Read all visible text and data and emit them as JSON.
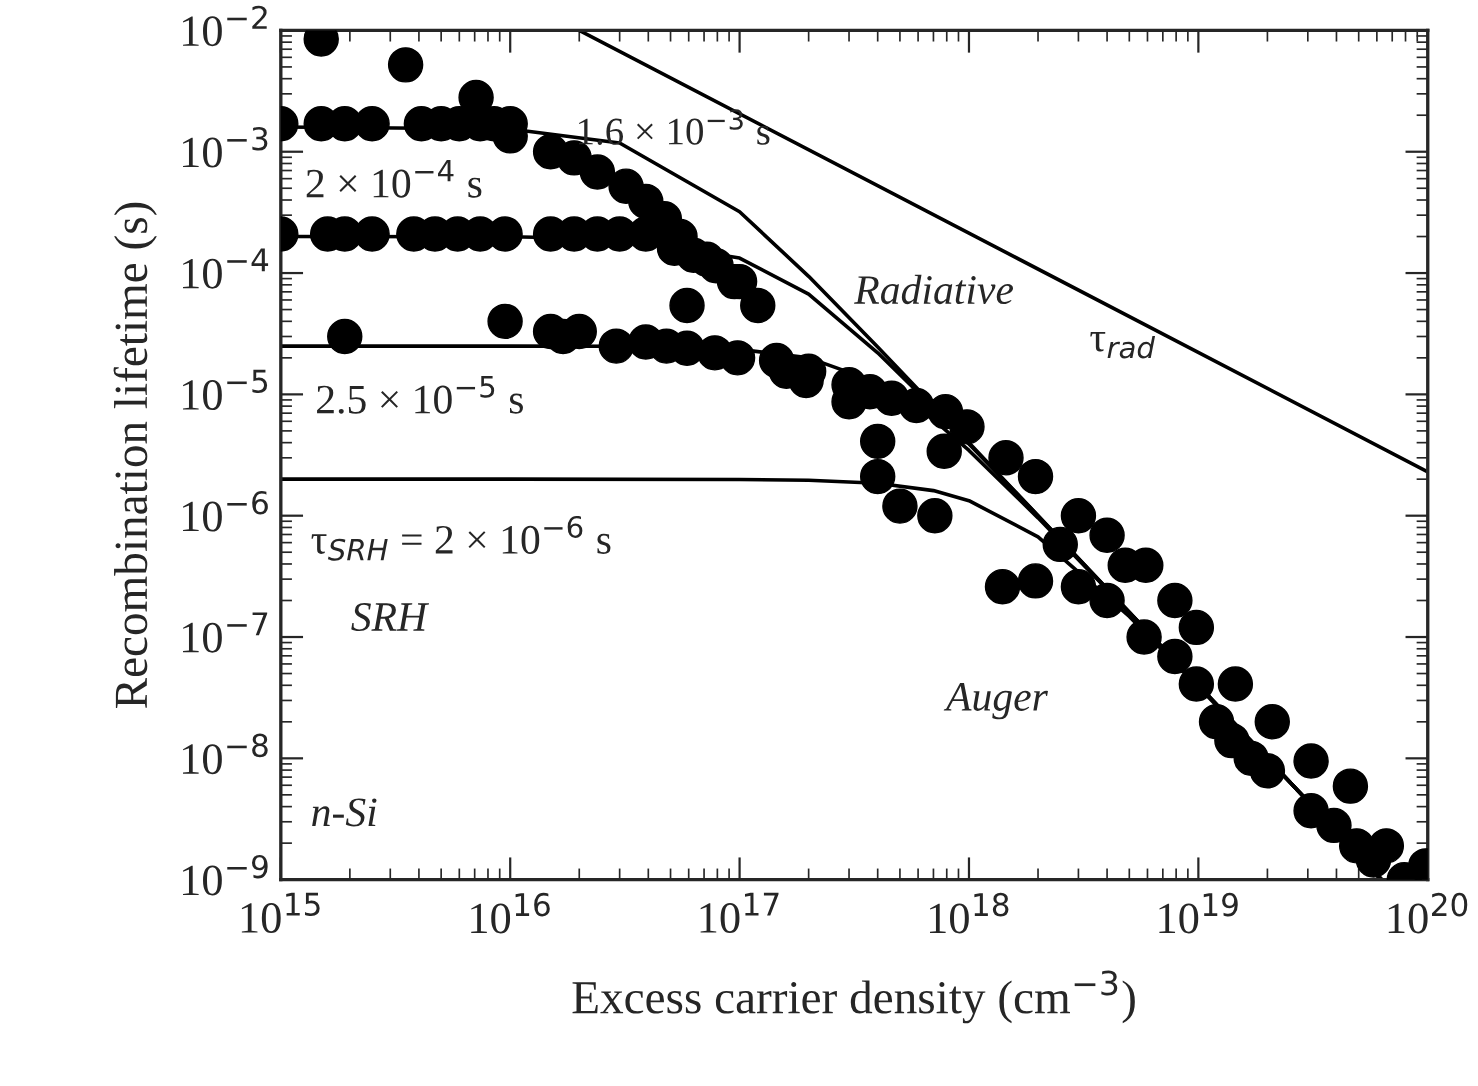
{
  "chart_data": {
    "type": "line",
    "xlabel": "Excess carrier density (cm$^{−3}$)",
    "ylabel": "Recombination lifetime (s)",
    "log": "xy",
    "grid": false,
    "legend": false,
    "marker": "none",
    "line_style": "solid",
    "xlim": [
      1000000000000000.0,
      1e+20
    ],
    "ylim": [
      1e-09,
      0.01
    ],
    "xticks": [
      {
        "value": 1000000000000000.0,
        "label": "10$^{15}$"
      },
      {
        "value": 1e+16,
        "label": "10$^{16}$"
      },
      {
        "value": 1e+17,
        "label": "10$^{17}$"
      },
      {
        "value": 1e+18,
        "label": "10$^{18}$"
      },
      {
        "value": 1e+19,
        "label": "10$^{19}$"
      },
      {
        "value": 1e+20,
        "label": "10$^{20}$"
      }
    ],
    "yticks": [
      {
        "value": 1e-09,
        "label": "10$^{−9}$"
      },
      {
        "value": 1e-08,
        "label": "10$^{−8}$"
      },
      {
        "value": 1e-07,
        "label": "10$^{−7}$"
      },
      {
        "value": 1e-06,
        "label": "10$^{−6}$"
      },
      {
        "value": 1e-05,
        "label": "10$^{−5}$"
      },
      {
        "value": 0.0001,
        "label": "10$^{−4}$"
      },
      {
        "value": 0.001,
        "label": "10$^{−3}$"
      },
      {
        "value": 0.01,
        "label": "10$^{−2}$"
      }
    ],
    "series": [
      {
        "color": "#000000",
        "x": [
          2e+16,
          1e+20
        ],
        "values": [
          0.01,
          2.3e-06
        ]
      },
      {
        "color": "#000000",
        "x": [
          1000000000000000.0,
          1e+16,
          3e+16,
          1e+17,
          2e+17,
          4e+17,
          7e+17,
          1e+18,
          2e+18,
          5e+18,
          1e+19,
          2e+19,
          5e+19,
          6.3e+19
        ],
        "values": [
          0.0016,
          0.00154,
          0.00118,
          0.00032,
          9.4e-05,
          2.46e-05,
          8.1e-06,
          4e-06,
          1e-06,
          1.6e-07,
          4e-08,
          1e-08,
          1.6e-09,
          1e-09
        ]
      },
      {
        "color": "#000000",
        "x": [
          1000000000000000.0,
          1e+16,
          3e+16,
          1e+17,
          2e+17,
          4e+17,
          7e+17,
          1e+18,
          2e+18,
          5e+18,
          1e+19,
          2e+19,
          5e+19,
          6.3e+19
        ],
        "values": [
          0.0002,
          0.000199,
          0.000191,
          0.000133,
          6.7e-05,
          2.2e-05,
          7.8e-06,
          3.9e-06,
          1e-06,
          1.6e-07,
          4e-08,
          1e-08,
          1.6e-09,
          1e-09
        ]
      },
      {
        "color": "#000000",
        "x": [
          1000000000000000.0,
          1e+16,
          3e+16,
          1e+17,
          2e+17,
          4e+17,
          7e+17,
          1e+18,
          2e+18,
          5e+18,
          1e+19,
          2e+19,
          5e+19,
          6.3e+19
        ],
        "values": [
          2.5e-05,
          2.5e-05,
          2.49e-05,
          2.35e-05,
          2e-05,
          1.25e-05,
          6.2e-06,
          3.45e-06,
          9.6e-07,
          1.59e-07,
          4e-08,
          1e-08,
          1.6e-09,
          1e-09
        ]
      },
      {
        "color": "#000000",
        "x": [
          1000000000000000.0,
          1e+16,
          1e+17,
          2e+17,
          4e+17,
          7e+17,
          1e+18,
          2e+18,
          5e+18,
          1e+19,
          2e+19,
          5e+19,
          6.3e+19
        ],
        "values": [
          2e-06,
          2e-06,
          1.99e-06,
          1.96e-06,
          1.85e-06,
          1.61e-06,
          1.33e-06,
          6.7e-07,
          1.48e-07,
          3.9e-08,
          1e-08,
          1.6e-09,
          1e-09
        ]
      },
      {
        "type": "scatter",
        "color": "#000000",
        "marker": "circle",
        "x": [
          1500000000000000.0,
          3500000000000000.0,
          7100000000000000.0,
          1000000000000000.0,
          1500000000000000.0,
          1900000000000000.0,
          2500000000000000.0,
          4100000000000000.0,
          5000000000000000.0,
          6000000000000000.0,
          7400000000000000.0,
          8500000000000000.0,
          1e+16,
          1e+16,
          1.5e+16,
          1.9e+16,
          2.4e+16,
          3.2e+16,
          3.9e+16,
          4.7e+16,
          5.5e+16,
          7.2e+16,
          9.5e+16,
          1.2e+17,
          5.9e+16,
          1000000000000000.0,
          1600000000000000.0,
          1900000000000000.0,
          2500000000000000.0,
          3800000000000000.0,
          4700000000000000.0,
          5900000000000000.0,
          7400000000000000.0,
          9500000000000000.0,
          1.5e+16,
          1.9e+16,
          2.4e+16,
          3e+16,
          3.9e+16,
          5.2e+16,
          6.3e+16,
          7.9e+16,
          1e+17,
          1900000000000000.0,
          9500000000000000.0,
          1.5e+16,
          1.7e+16,
          2e+16,
          2.9e+16,
          3.9e+16,
          4.8e+16,
          5.9e+16,
          7.8e+16,
          9.8e+16,
          1.45e+17,
          1.6e+17,
          2e+17,
          3e+17,
          3e+17,
          3.7e+17,
          1.95e+17,
          4.6e+17,
          5.9e+17,
          7.9e+17,
          9.8e+17,
          4e+17,
          7.8e+17,
          4e+17,
          5e+17,
          7.1e+17,
          1.45e+18,
          1.95e+18,
          3e+18,
          4e+18,
          4.8e+18,
          5.9e+18,
          2.5e+18,
          1.4e+18,
          1.95e+18,
          3e+18,
          4e+18,
          5.8e+18,
          7.9e+18,
          9.8e+18,
          7.9e+18,
          9.8e+18,
          1.45e+19,
          1.2e+19,
          1.4e+19,
          1.7e+19,
          2e+19,
          2.1e+19,
          3.1e+19,
          3.1e+19,
          3.9e+19,
          4.6e+19,
          4.9e+19,
          5.8e+19,
          6.6e+19,
          7.9e+19,
          9.8e+19
        ],
        "values": [
          0.0085,
          0.0052,
          0.0028,
          0.0017,
          0.0017,
          0.0017,
          0.0017,
          0.0017,
          0.0017,
          0.0017,
          0.0017,
          0.0017,
          0.0017,
          0.00135,
          0.001,
          0.00089,
          0.00068,
          0.00052,
          0.00039,
          0.00028,
          0.0002,
          0.00013,
          8.5e-05,
          5.4e-05,
          5.4e-05,
          0.00021,
          0.00021,
          0.00021,
          0.00021,
          0.00021,
          0.00021,
          0.00021,
          0.00021,
          0.00021,
          0.00021,
          0.00021,
          0.00021,
          0.00021,
          0.00021,
          0.00016,
          0.00014,
          0.000115,
          8.5e-05,
          3e-05,
          4e-05,
          3.3e-05,
          3e-05,
          3.3e-05,
          2.5e-05,
          2.7e-05,
          2.5e-05,
          2.4e-05,
          2.2e-05,
          2e-05,
          1.9e-05,
          1.55e-05,
          1.55e-05,
          1.2e-05,
          8.7e-06,
          1.05e-05,
          1.3e-05,
          9.3e-06,
          8.1e-06,
          7.2e-06,
          5.4e-06,
          4.1e-06,
          3.4e-06,
          2.1e-06,
          1.2e-06,
          1e-06,
          3e-06,
          2.1e-06,
          1e-06,
          6.9e-07,
          3.9e-07,
          3.9e-07,
          5.8e-07,
          2.6e-07,
          2.9e-07,
          2.6e-07,
          2e-07,
          1e-07,
          2e-07,
          1.2e-07,
          6.9e-08,
          4.1e-08,
          4.1e-08,
          2e-08,
          1.4e-08,
          1e-08,
          7.9e-09,
          2e-08,
          9.5e-09,
          3.7e-09,
          2.8e-09,
          5.9e-09,
          1.9e-09,
          1.45e-09,
          1.9e-09,
          1e-09,
          1.3e-09
        ]
      }
    ],
    "annotations": [
      "1.6 × 10$^{−3}$ s",
      "2 × 10$^{−4}$ s",
      "2.5 × 10$^{−5}$ s",
      "τ$_{SRH}$ = 2 × 10$^{−6}$ s",
      "SRH",
      "Radiative",
      "τ$_{rad}$",
      "Auger",
      "n-Si"
    ]
  }
}
